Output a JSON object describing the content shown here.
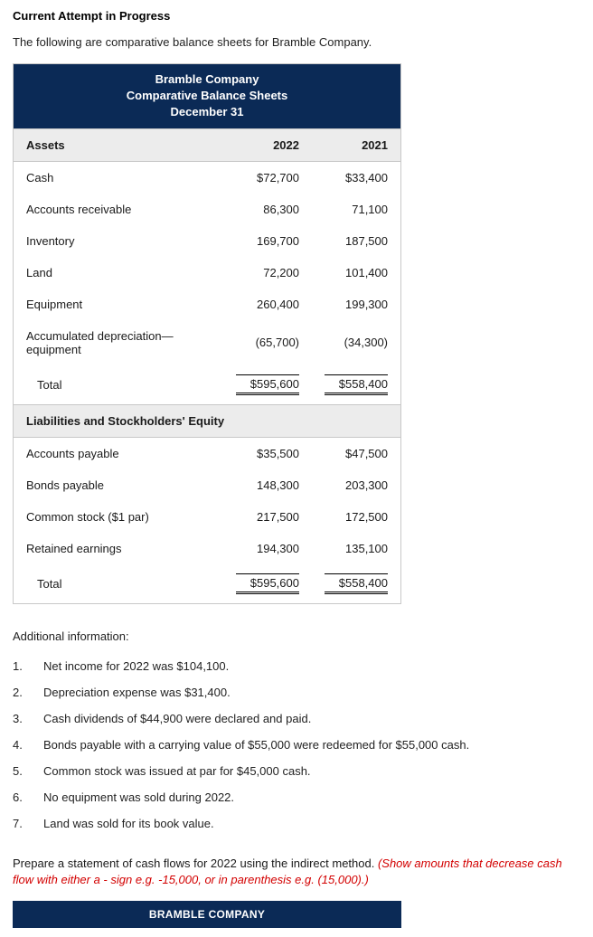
{
  "heading": "Current Attempt in Progress",
  "intro": "The following are comparative balance sheets for Bramble Company.",
  "sheet": {
    "header_background": "#0b2a56",
    "header_text_color": "#ffffff",
    "section_background": "#ececec",
    "border_color": "#c8c8c8",
    "title_line1": "Bramble Company",
    "title_line2": "Comparative Balance Sheets",
    "title_line3": "December 31",
    "col_labels": {
      "c1": "Assets",
      "c2": "2022",
      "c3": "2021"
    },
    "assets": [
      {
        "label": "Cash",
        "v2022": "$72,700",
        "v2021": "$33,400"
      },
      {
        "label": "Accounts receivable",
        "v2022": "86,300",
        "v2021": "71,100"
      },
      {
        "label": "Inventory",
        "v2022": "169,700",
        "v2021": "187,500"
      },
      {
        "label": "Land",
        "v2022": "72,200",
        "v2021": "101,400"
      },
      {
        "label": "Equipment",
        "v2022": "260,400",
        "v2021": "199,300"
      },
      {
        "label": "Accumulated depreciation—equipment",
        "v2022": "(65,700)",
        "v2021": "(34,300)"
      }
    ],
    "assets_total": {
      "label": "Total",
      "v2022": "$595,600",
      "v2021": "$558,400"
    },
    "liab_header": "Liabilities and Stockholders' Equity",
    "liab": [
      {
        "label": "Accounts payable",
        "v2022": "$35,500",
        "v2021": "$47,500"
      },
      {
        "label": "Bonds payable",
        "v2022": "148,300",
        "v2021": "203,300"
      },
      {
        "label": "Common stock ($1 par)",
        "v2022": "217,500",
        "v2021": "172,500"
      },
      {
        "label": "Retained earnings",
        "v2022": "194,300",
        "v2021": "135,100"
      }
    ],
    "liab_total": {
      "label": "Total",
      "v2022": "$595,600",
      "v2021": "$558,400"
    }
  },
  "additional": {
    "title": "Additional information:",
    "items": [
      "Net income for 2022 was $104,100.",
      "Depreciation expense was $31,400.",
      "Cash dividends of $44,900 were declared and paid.",
      "Bonds payable with a carrying value of $55,000 were redeemed for $55,000 cash.",
      "Common stock was issued at par for $45,000 cash.",
      "No equipment was sold during 2022.",
      "Land was sold for its book value."
    ]
  },
  "prepare": {
    "black": "Prepare a statement of cash flows for 2022 using the indirect method. ",
    "red": "(Show amounts that decrease cash flow with either a - sign e.g. -15,000, or in parenthesis e.g. (15,000).)"
  },
  "footer_bar": "BRAMBLE COMPANY"
}
